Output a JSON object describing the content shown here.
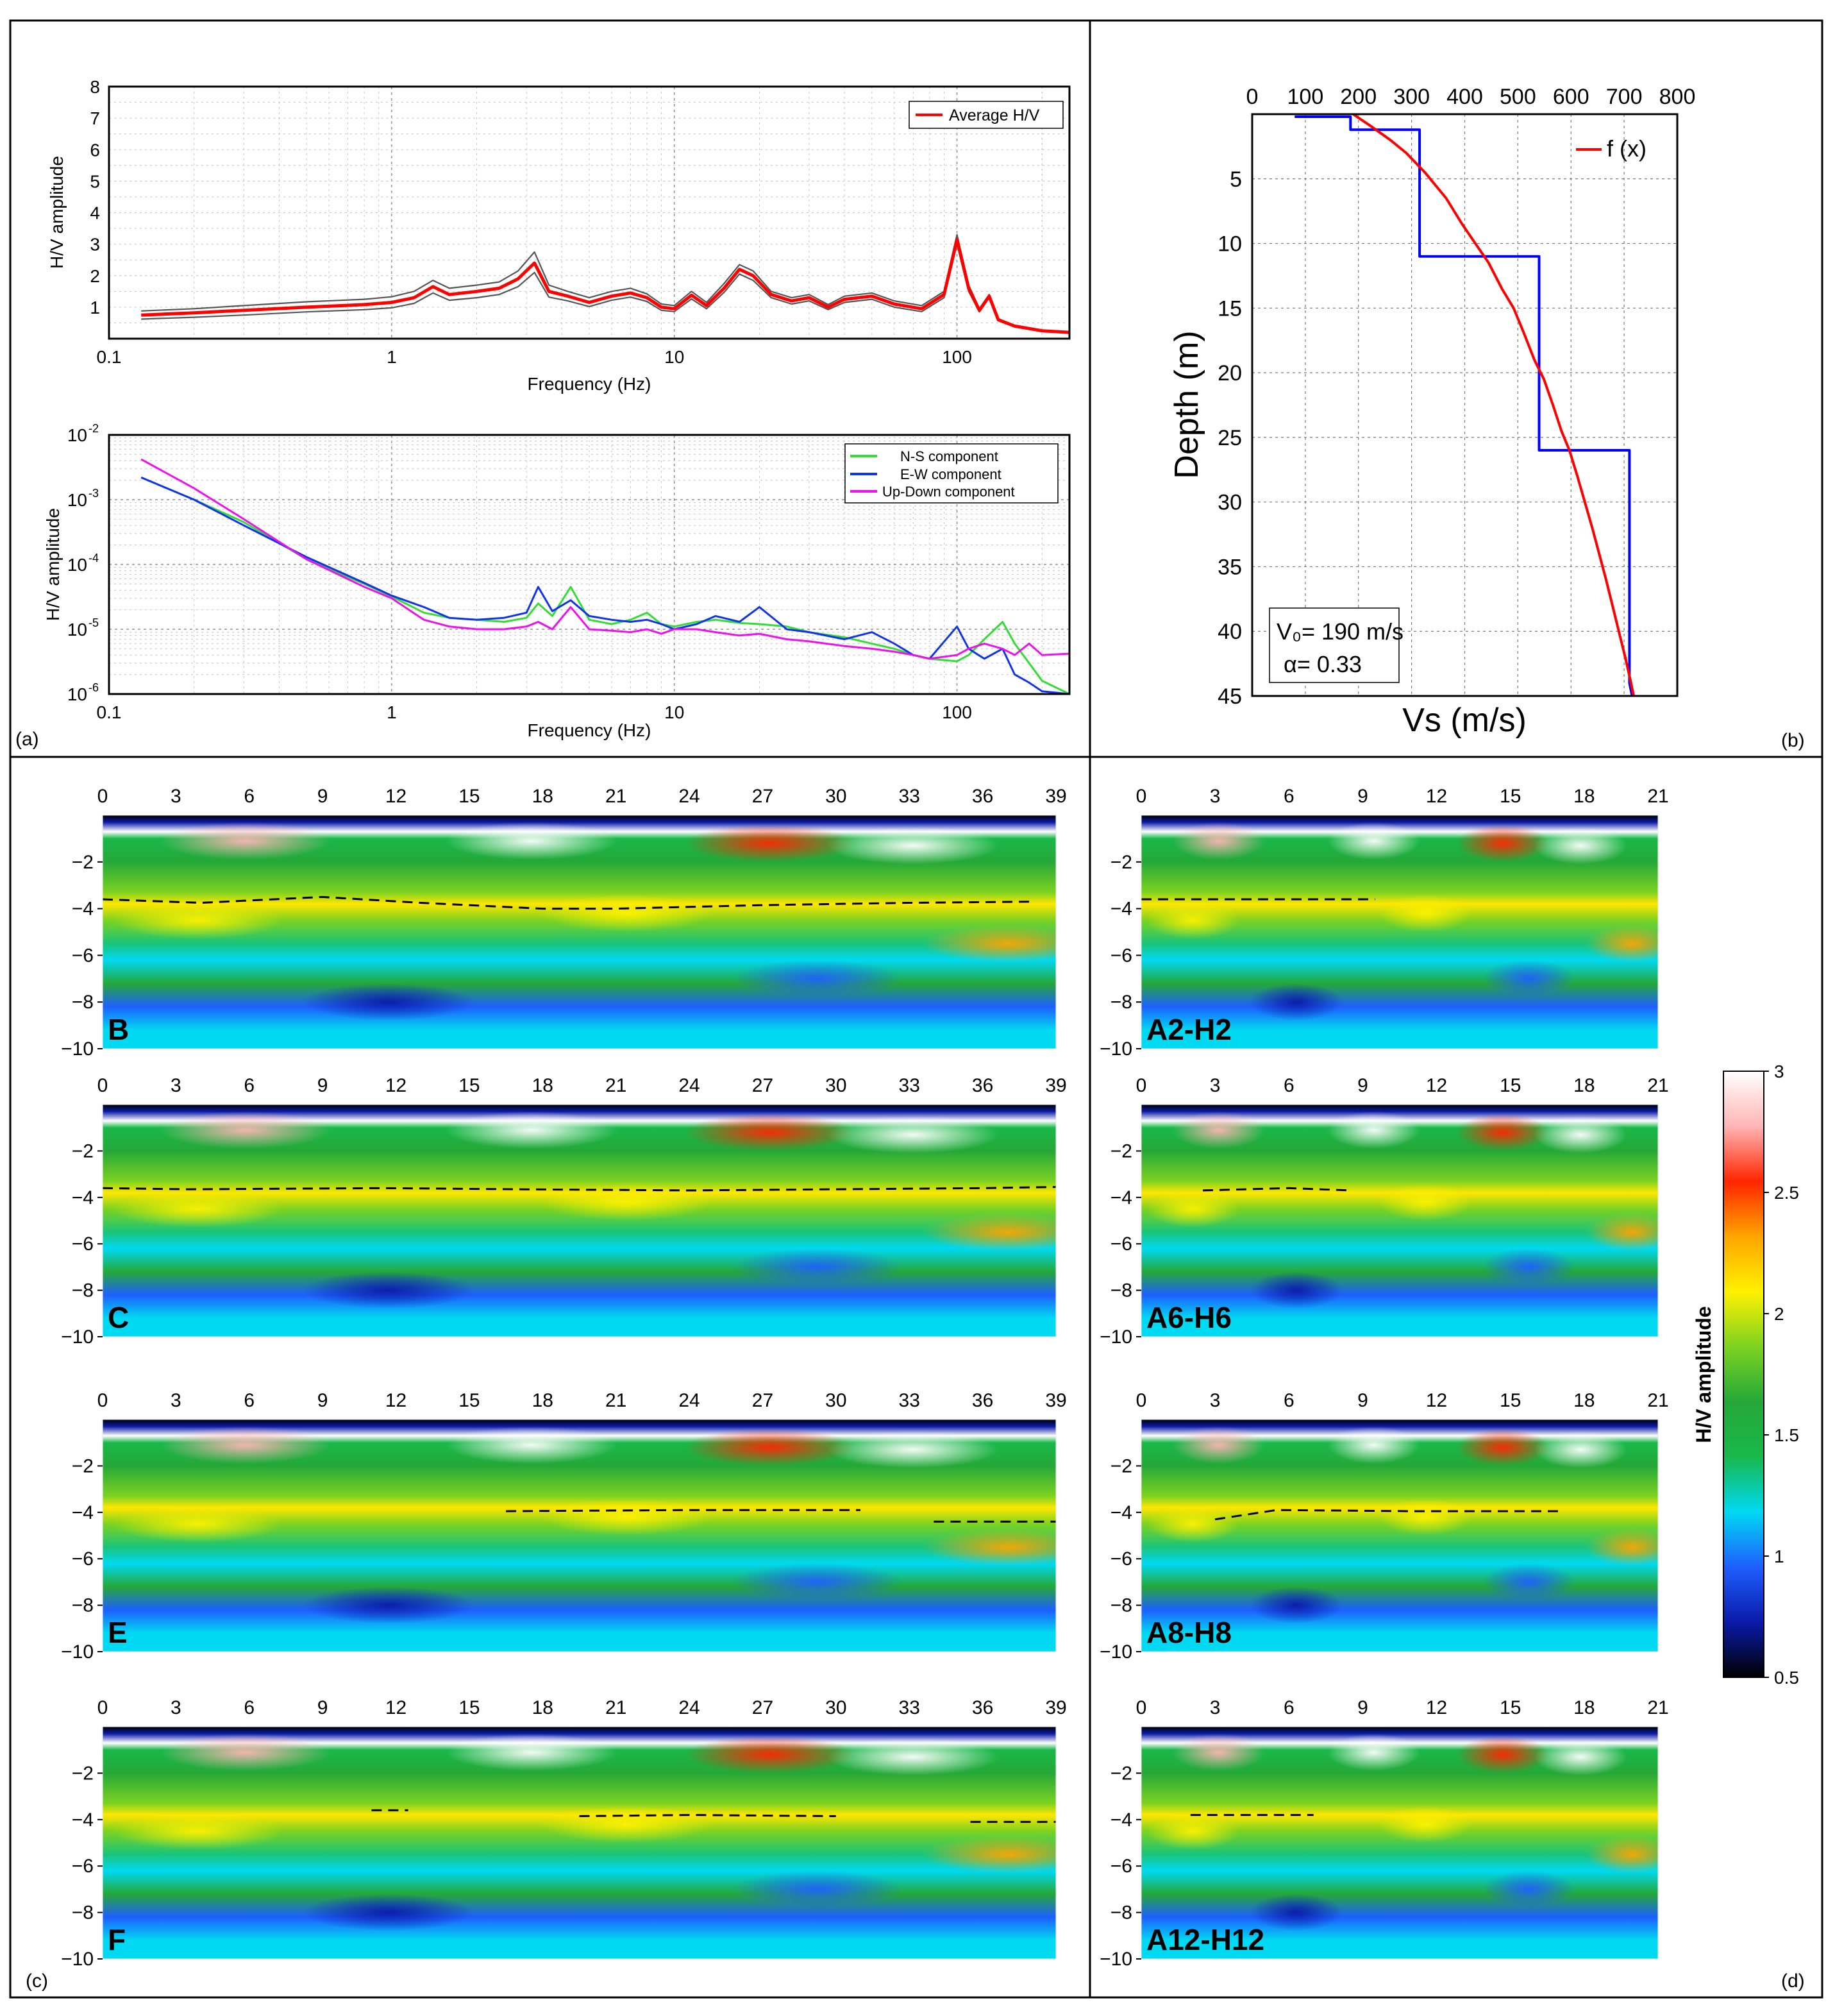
{
  "panel_letters": {
    "a": "(a)",
    "b": "(b)",
    "c": "(c)",
    "d": "(d)"
  },
  "colorbar": {
    "label": "H/V amplitude",
    "ticks": [
      0.5,
      1,
      1.5,
      2,
      2.5,
      3
    ],
    "tick_labels": [
      "0.5",
      "1",
      "1.5",
      "2",
      "2.5",
      "3"
    ],
    "colors": [
      "#000000",
      "#0a1aa8",
      "#1e5fff",
      "#00d9f2",
      "#19b84a",
      "#25a838",
      "#7cd221",
      "#fff100",
      "#ffa500",
      "#ff2500",
      "#ffb5b5",
      "#ffffff"
    ]
  },
  "chart_data": [
    {
      "id": "hv-average",
      "type": "line",
      "xscale": "log",
      "xlabel": "Frequency (Hz)",
      "ylabel": "H/V amplitude",
      "xlim": [
        0.1,
        250
      ],
      "ylim": [
        0,
        8
      ],
      "xticks": [
        0.1,
        1,
        10,
        100
      ],
      "xtick_labels": [
        "0.1",
        "1",
        "10",
        "100"
      ],
      "yticks": [
        1,
        2,
        3,
        4,
        5,
        6,
        7,
        8
      ],
      "ytick_labels": [
        "1",
        "2",
        "3",
        "4",
        "5",
        "6",
        "7",
        "8"
      ],
      "legend": "top-right",
      "x": [
        0.13,
        0.2,
        0.3,
        0.5,
        0.8,
        1.0,
        1.2,
        1.4,
        1.6,
        2.0,
        2.4,
        2.8,
        3.2,
        3.6,
        4.2,
        5.0,
        6.0,
        7.0,
        8.0,
        9.0,
        10.0,
        11.5,
        13.0,
        15.0,
        17.0,
        19.0,
        22.0,
        26.0,
        30.0,
        35.0,
        40.0,
        50.0,
        60.0,
        75.0,
        90.0,
        100.0,
        110.0,
        120.0,
        130.0,
        140.0,
        160.0,
        200.0,
        250.0
      ],
      "series": [
        {
          "name": "Average H/V",
          "color": "#ff0000",
          "values": [
            0.75,
            0.82,
            0.9,
            1.0,
            1.08,
            1.15,
            1.3,
            1.65,
            1.4,
            1.5,
            1.6,
            1.9,
            2.4,
            1.5,
            1.35,
            1.15,
            1.35,
            1.45,
            1.3,
            1.0,
            0.95,
            1.38,
            1.05,
            1.6,
            2.2,
            2.0,
            1.4,
            1.2,
            1.3,
            1.0,
            1.25,
            1.35,
            1.1,
            0.95,
            1.4,
            3.15,
            1.6,
            0.9,
            1.35,
            0.6,
            0.4,
            0.25,
            0.2
          ]
        },
        {
          "color": "#555555",
          "values": [
            0.88,
            0.95,
            1.05,
            1.17,
            1.25,
            1.33,
            1.5,
            1.85,
            1.6,
            1.7,
            1.8,
            2.15,
            2.75,
            1.7,
            1.5,
            1.3,
            1.5,
            1.6,
            1.42,
            1.1,
            1.05,
            1.5,
            1.15,
            1.75,
            2.35,
            2.15,
            1.5,
            1.3,
            1.4,
            1.08,
            1.35,
            1.45,
            1.2,
            1.05,
            1.5,
            3.3,
            1.7,
            0.95,
            1.4,
            0.63,
            0.42,
            0.27,
            0.21
          ]
        },
        {
          "color": "#555555",
          "values": [
            0.62,
            0.68,
            0.75,
            0.85,
            0.92,
            0.98,
            1.12,
            1.45,
            1.22,
            1.3,
            1.4,
            1.65,
            2.1,
            1.32,
            1.2,
            1.02,
            1.22,
            1.32,
            1.18,
            0.9,
            0.86,
            1.26,
            0.95,
            1.47,
            2.05,
            1.85,
            1.3,
            1.1,
            1.2,
            0.92,
            1.15,
            1.25,
            1.0,
            0.86,
            1.3,
            3.0,
            1.5,
            0.85,
            1.3,
            0.57,
            0.38,
            0.23,
            0.19
          ]
        }
      ]
    },
    {
      "id": "hv-components",
      "type": "line",
      "xscale": "log",
      "yscale": "log",
      "xlabel": "Frequency (Hz)",
      "ylabel": "H/V amplitude",
      "xlim": [
        0.1,
        250
      ],
      "ylim": [
        1e-06,
        0.01
      ],
      "xticks": [
        0.1,
        1,
        10,
        100
      ],
      "xtick_labels": [
        "0.1",
        "1",
        "10",
        "100"
      ],
      "yticks": [
        1e-06,
        1e-05,
        0.0001,
        0.001,
        0.01
      ],
      "ytick_bases": [
        "10",
        "10",
        "10",
        "10",
        "10"
      ],
      "ytick_exponents": [
        "-6",
        "-5",
        "-4",
        "-3",
        "-2"
      ],
      "legend": "top-right",
      "x": [
        0.13,
        0.2,
        0.3,
        0.5,
        0.8,
        1.0,
        1.3,
        1.6,
        2.0,
        2.5,
        3.0,
        3.3,
        3.7,
        4.3,
        5.0,
        6.0,
        7.0,
        8.0,
        9.0,
        10.0,
        12.0,
        14.0,
        17.0,
        20.0,
        25.0,
        30.0,
        40.0,
        50.0,
        60.0,
        70.0,
        80.0,
        100.0,
        110.0,
        125.0,
        145.0,
        160.0,
        180.0,
        200.0,
        250.0
      ],
      "series": [
        {
          "name": "N-S component",
          "color": "#33dd33",
          "values": [
            0.0022,
            0.001,
            0.00045,
            0.00012,
            5e-05,
            3.2e-05,
            1.8e-05,
            1.5e-05,
            1.4e-05,
            1.3e-05,
            1.5e-05,
            2.5e-05,
            1.6e-05,
            4.5e-05,
            1.4e-05,
            1.2e-05,
            1.4e-05,
            1.8e-05,
            1.2e-05,
            1.1e-05,
            1.3e-05,
            1.4e-05,
            1.25e-05,
            1.2e-05,
            1.1e-05,
            9e-06,
            7.5e-06,
            6e-06,
            5e-06,
            4e-06,
            3.5e-06,
            3.2e-06,
            4e-06,
            7e-06,
            1.3e-05,
            6e-06,
            3e-06,
            1.6e-06,
            1e-06
          ]
        },
        {
          "name": "E-W component",
          "color": "#1133ee",
          "values": [
            0.0022,
            0.001,
            0.0004,
            0.00013,
            5.2e-05,
            3.3e-05,
            2.2e-05,
            1.5e-05,
            1.4e-05,
            1.5e-05,
            1.8e-05,
            4.5e-05,
            1.9e-05,
            2.8e-05,
            1.6e-05,
            1.4e-05,
            1.3e-05,
            1.4e-05,
            1.2e-05,
            1e-05,
            1.2e-05,
            1.6e-05,
            1.3e-05,
            2.2e-05,
            1e-05,
            9e-06,
            7e-06,
            9e-06,
            6e-06,
            4e-06,
            3.5e-06,
            1.1e-05,
            5e-06,
            3.5e-06,
            5e-06,
            2e-06,
            1.5e-06,
            1.1e-06,
            1e-06
          ]
        },
        {
          "name": "Up-Down component",
          "color": "#ee11ee",
          "values": [
            0.0042,
            0.0015,
            0.0005,
            0.00012,
            4.5e-05,
            3e-05,
            1.4e-05,
            1.1e-05,
            1e-05,
            1e-05,
            1.1e-05,
            1.3e-05,
            1e-05,
            2.2e-05,
            1e-05,
            9.5e-06,
            9e-06,
            1e-05,
            8.5e-06,
            1e-05,
            1e-05,
            9e-06,
            8e-06,
            8.5e-06,
            7e-06,
            6.5e-06,
            5.5e-06,
            5e-06,
            4.5e-06,
            4e-06,
            3.5e-06,
            4e-06,
            5e-06,
            6e-06,
            5e-06,
            4e-06,
            6e-06,
            4e-06,
            4.2e-06
          ]
        }
      ]
    },
    {
      "id": "vs-profile",
      "type": "line",
      "xlabel": "Vs (m/s)",
      "ylabel": "Depth (m)",
      "xlim": [
        0,
        800
      ],
      "ylim": [
        0,
        45
      ],
      "y_inverted": true,
      "x_axis_position": "top",
      "xticks": [
        0,
        100,
        200,
        300,
        400,
        500,
        600,
        700,
        800
      ],
      "xtick_labels": [
        "0",
        "100",
        "200",
        "300",
        "400",
        "500",
        "600",
        "700",
        "800"
      ],
      "yticks": [
        5,
        10,
        15,
        20,
        25,
        30,
        35,
        40,
        45
      ],
      "ytick_labels": [
        "5",
        "10",
        "15",
        "20",
        "25",
        "30",
        "35",
        "40",
        "45"
      ],
      "legend": "top-right",
      "series": [
        {
          "name": "f (x)",
          "color": "#ff0000",
          "x": [
            190,
            226,
            260,
            290,
            325,
            365,
            395,
            420,
            445,
            470,
            492,
            512,
            531,
            549,
            566,
            582,
            597,
            612,
            626,
            640,
            653,
            666,
            678,
            690,
            702,
            713,
            718
          ],
          "y": [
            0,
            1,
            2,
            3,
            4.5,
            6.5,
            8.5,
            10,
            11.5,
            13.5,
            15,
            17,
            19,
            20.5,
            22.5,
            24.5,
            26,
            28,
            30,
            32,
            34,
            36,
            38,
            40,
            42,
            44,
            45
          ]
        },
        {
          "color": "#0000ff",
          "x": [
            80,
            185,
            185,
            315,
            315,
            540,
            540,
            710,
            710,
            715
          ],
          "y": [
            0.2,
            0.2,
            1.2,
            1.2,
            11,
            11,
            26,
            26,
            44,
            45
          ]
        }
      ],
      "annotation_lines": [
        "V₀= 190 m/s",
        "α= 0.33"
      ]
    },
    {
      "id": "section-b",
      "type": "heatmap",
      "label": "B",
      "xlim": [
        0,
        39
      ],
      "ylim": [
        -10,
        0
      ],
      "xticks": [
        0,
        3,
        6,
        9,
        12,
        15,
        18,
        21,
        24,
        27,
        30,
        33,
        36,
        39
      ],
      "xtick_labels": [
        "0",
        "3",
        "6",
        "9",
        "12",
        "15",
        "18",
        "21",
        "24",
        "27",
        "30",
        "33",
        "36",
        "39"
      ],
      "yticks": [
        -2,
        -4,
        -6,
        -8,
        -10
      ],
      "ytick_labels": [
        "−2",
        "−4",
        "−6",
        "−8",
        "−10"
      ],
      "bedrock_interface": {
        "x": [
          0,
          4,
          9,
          13,
          18,
          21,
          27,
          33,
          38
        ],
        "depth": [
          -3.6,
          -3.75,
          -3.5,
          -3.75,
          -4.0,
          -4.0,
          -3.85,
          -3.75,
          -3.7
        ]
      }
    },
    {
      "id": "section-a2-h2",
      "type": "heatmap",
      "label": "A2-H2",
      "xlim": [
        0,
        21
      ],
      "ylim": [
        -10,
        0
      ],
      "xticks": [
        0,
        3,
        6,
        9,
        12,
        15,
        18,
        21
      ],
      "xtick_labels": [
        "0",
        "3",
        "6",
        "9",
        "12",
        "15",
        "18",
        "21"
      ],
      "yticks": [
        -2,
        -4,
        -6,
        -8,
        -10
      ],
      "ytick_labels": [
        "−2",
        "−4",
        "−6",
        "−8",
        "−10"
      ],
      "bedrock_interface": {
        "x": [
          0,
          5,
          9.5
        ],
        "depth": [
          -3.6,
          -3.6,
          -3.6
        ]
      }
    },
    {
      "id": "section-c",
      "type": "heatmap",
      "label": "C",
      "xlim": [
        0,
        39
      ],
      "ylim": [
        -10,
        0
      ],
      "xticks": [
        0,
        3,
        6,
        9,
        12,
        15,
        18,
        21,
        24,
        27,
        30,
        33,
        36,
        39
      ],
      "xtick_labels": [
        "0",
        "3",
        "6",
        "9",
        "12",
        "15",
        "18",
        "21",
        "24",
        "27",
        "30",
        "33",
        "36",
        "39"
      ],
      "yticks": [
        -2,
        -4,
        -6,
        -8,
        -10
      ],
      "ytick_labels": [
        "−2",
        "−4",
        "−6",
        "−8",
        "−10"
      ],
      "bedrock_interface": {
        "x": [
          0,
          3.5,
          11.5,
          17,
          24,
          30,
          36,
          39
        ],
        "depth": [
          -3.6,
          -3.65,
          -3.6,
          -3.65,
          -3.7,
          -3.65,
          -3.6,
          -3.55
        ]
      }
    },
    {
      "id": "section-a6-h6",
      "type": "heatmap",
      "label": "A6-H6",
      "xlim": [
        0,
        21
      ],
      "ylim": [
        -10,
        0
      ],
      "xticks": [
        0,
        3,
        6,
        9,
        12,
        15,
        18,
        21
      ],
      "xtick_labels": [
        "0",
        "3",
        "6",
        "9",
        "12",
        "15",
        "18",
        "21"
      ],
      "yticks": [
        -2,
        -4,
        -6,
        -8,
        -10
      ],
      "ytick_labels": [
        "−2",
        "−4",
        "−6",
        "−8",
        "−10"
      ],
      "bedrock_interface": {
        "x": [
          2.5,
          6,
          8.5
        ],
        "depth": [
          -3.7,
          -3.6,
          -3.7
        ]
      }
    },
    {
      "id": "section-e",
      "type": "heatmap",
      "label": "E",
      "xlim": [
        0,
        39
      ],
      "ylim": [
        -10,
        0
      ],
      "xticks": [
        0,
        3,
        6,
        9,
        12,
        15,
        18,
        21,
        24,
        27,
        30,
        33,
        36,
        39
      ],
      "xtick_labels": [
        "0",
        "3",
        "6",
        "9",
        "12",
        "15",
        "18",
        "21",
        "24",
        "27",
        "30",
        "33",
        "36",
        "39"
      ],
      "yticks": [
        -2,
        -4,
        -6,
        -8,
        -10
      ],
      "ytick_labels": [
        "−2",
        "−4",
        "−6",
        "−8",
        "−10"
      ],
      "bedrock_interface": {
        "x": [
          16.5,
          24,
          31
        ],
        "depth": [
          -3.95,
          -3.9,
          -3.9
        ]
      },
      "bedrock_interface_2": {
        "x": [
          34,
          39
        ],
        "depth": [
          -4.4,
          -4.4
        ]
      }
    },
    {
      "id": "section-a8-h8",
      "type": "heatmap",
      "label": "A8-H8",
      "xlim": [
        0,
        21
      ],
      "ylim": [
        -10,
        0
      ],
      "xticks": [
        0,
        3,
        6,
        9,
        12,
        15,
        18,
        21
      ],
      "xtick_labels": [
        "0",
        "3",
        "6",
        "9",
        "12",
        "15",
        "18",
        "21"
      ],
      "yticks": [
        -2,
        -4,
        -6,
        -8,
        -10
      ],
      "ytick_labels": [
        "−2",
        "−4",
        "−6",
        "−8",
        "−10"
      ],
      "bedrock_interface": {
        "x": [
          3,
          5.5,
          11,
          17
        ],
        "depth": [
          -4.3,
          -3.9,
          -3.95,
          -3.95
        ]
      }
    },
    {
      "id": "section-f",
      "type": "heatmap",
      "label": "F",
      "xlim": [
        0,
        39
      ],
      "ylim": [
        -10,
        0
      ],
      "xticks": [
        0,
        3,
        6,
        9,
        12,
        15,
        18,
        21,
        24,
        27,
        30,
        33,
        36,
        39
      ],
      "xtick_labels": [
        "0",
        "3",
        "6",
        "9",
        "12",
        "15",
        "18",
        "21",
        "24",
        "27",
        "30",
        "33",
        "36",
        "39"
      ],
      "yticks": [
        -2,
        -4,
        -6,
        -8,
        -10
      ],
      "ytick_labels": [
        "−2",
        "−4",
        "−6",
        "−8",
        "−10"
      ],
      "bedrock_interface": {
        "x": [
          11,
          12.5
        ],
        "depth": [
          -3.6,
          -3.6
        ]
      },
      "bedrock_interface_2": {
        "x": [
          19.5,
          24,
          30
        ],
        "depth": [
          -3.85,
          -3.8,
          -3.85
        ]
      },
      "bedrock_interface_3": {
        "x": [
          35.5,
          39
        ],
        "depth": [
          -4.1,
          -4.1
        ]
      }
    },
    {
      "id": "section-a12-h12",
      "type": "heatmap",
      "label": "A12-H12",
      "xlim": [
        0,
        21
      ],
      "ylim": [
        -10,
        0
      ],
      "xticks": [
        0,
        3,
        6,
        9,
        12,
        15,
        18,
        21
      ],
      "xtick_labels": [
        "0",
        "3",
        "6",
        "9",
        "12",
        "15",
        "18",
        "21"
      ],
      "yticks": [
        -2,
        -4,
        -6,
        -8,
        -10
      ],
      "ytick_labels": [
        "−2",
        "−4",
        "−6",
        "−8",
        "−10"
      ],
      "bedrock_interface": {
        "x": [
          2,
          7
        ],
        "depth": [
          -3.8,
          -3.8
        ]
      }
    }
  ]
}
